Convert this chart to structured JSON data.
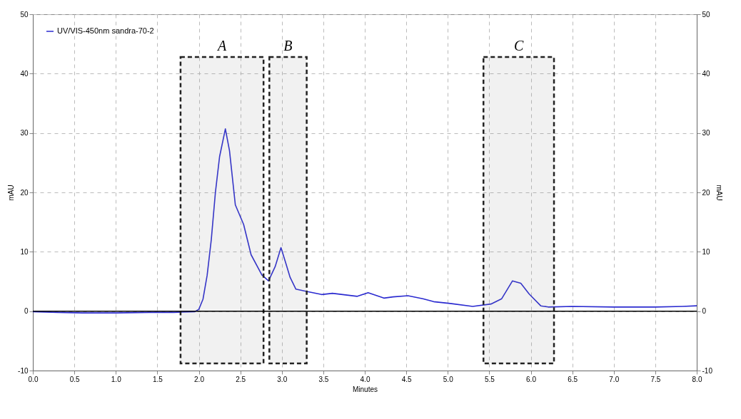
{
  "chart_data": {
    "type": "line",
    "xlabel": "Minutes",
    "ylabel": "mAU",
    "y2label": "mAU",
    "xlim": [
      0,
      8
    ],
    "xticks": [
      {
        "value": 0,
        "label": "0.0"
      },
      0.5,
      {
        "value": 1,
        "label": "1.0"
      },
      1.5,
      {
        "value": 2,
        "label": "2.0"
      },
      2.5,
      {
        "value": 3,
        "label": "3.0"
      },
      3.5,
      {
        "value": 4,
        "label": "4.0"
      },
      4.5,
      {
        "value": 5,
        "label": "5.0"
      },
      5.5,
      {
        "value": 6,
        "label": "6.0"
      },
      6.5,
      {
        "value": 7,
        "label": "7.0"
      },
      7.5,
      {
        "value": 8,
        "label": "8.0"
      }
    ],
    "ylim": [
      -10,
      50
    ],
    "yticks": [
      -10,
      0,
      10,
      20,
      30,
      40,
      50
    ],
    "y2lim": [
      -10,
      50
    ],
    "y2ticks": [
      -10,
      0,
      10,
      20,
      30,
      40,
      50
    ],
    "grid": true,
    "legend": "top left",
    "marker": "none",
    "line_style": "solid",
    "ref_lines": [
      {
        "axis": "y",
        "value": 0,
        "color": "#000000"
      }
    ],
    "bands": [
      {
        "axis": "x",
        "from": 1.78,
        "to": 2.78,
        "label": "A"
      },
      {
        "axis": "x",
        "from": 2.85,
        "to": 3.3,
        "label": "B"
      },
      {
        "axis": "x",
        "from": 5.43,
        "to": 6.28,
        "label": "C"
      }
    ],
    "series": [
      {
        "name": "UV/VIS-450nm sandra-70-2",
        "color": "#2b2bd0",
        "x": [
          0,
          0.3,
          0.6,
          1.0,
          1.4,
          1.7,
          1.95,
          2.0,
          2.05,
          2.1,
          2.15,
          2.2,
          2.25,
          2.32,
          2.37,
          2.44,
          2.54,
          2.63,
          2.76,
          2.84,
          2.92,
          2.99,
          3.05,
          3.1,
          3.17,
          3.31,
          3.48,
          3.61,
          3.91,
          4.04,
          4.23,
          4.34,
          4.52,
          4.7,
          4.83,
          5.03,
          5.3,
          5.52,
          5.65,
          5.78,
          5.88,
          5.98,
          6.12,
          6.21,
          6.5,
          7.0,
          7.5,
          7.83,
          8.0
        ],
        "values": [
          -0.1,
          -0.2,
          -0.3,
          -0.3,
          -0.2,
          -0.2,
          -0.1,
          0.3,
          2,
          6,
          12,
          20,
          26,
          30.7,
          27,
          17.9,
          14.6,
          9.5,
          6.1,
          5.1,
          7.5,
          10.7,
          8,
          5.7,
          3.7,
          3.3,
          2.8,
          3.0,
          2.5,
          3.1,
          2.2,
          2.4,
          2.6,
          2.1,
          1.6,
          1.3,
          0.8,
          1.2,
          2.1,
          5.1,
          4.7,
          2.9,
          0.9,
          0.7,
          0.8,
          0.7,
          0.7,
          0.8,
          0.9
        ]
      }
    ]
  }
}
